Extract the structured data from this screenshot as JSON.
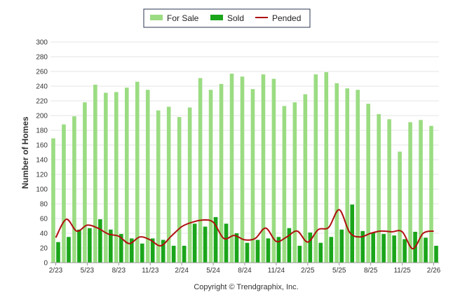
{
  "chart_data": {
    "type": "bar",
    "ylabel": "Number of Homes",
    "ylim": [
      0,
      300
    ],
    "yticks": [
      0,
      20,
      40,
      60,
      80,
      100,
      120,
      140,
      160,
      180,
      200,
      220,
      240,
      260,
      280,
      300
    ],
    "grid": true,
    "legend_position": "top-center",
    "credit": "Copyright © Trendgraphix, Inc.",
    "x": [
      "2/23",
      "3/23",
      "4/23",
      "5/23",
      "6/23",
      "7/23",
      "8/23",
      "9/23",
      "10/23",
      "11/23",
      "12/23",
      "1/24",
      "2/24",
      "3/24",
      "4/24",
      "5/24",
      "6/24",
      "7/24",
      "8/24",
      "9/24",
      "10/24",
      "11/24",
      "12/24",
      "1/25",
      "2/25",
      "3/25",
      "4/25",
      "5/25",
      "6/25",
      "7/25",
      "8/25",
      "9/25",
      "10/25",
      "11/25",
      "12/25",
      "1/26",
      "2/26"
    ],
    "x_tick_labels": [
      {
        "index": 0,
        "label": "2/23"
      },
      {
        "index": 3,
        "label": "5/23"
      },
      {
        "index": 6,
        "label": "8/23"
      },
      {
        "index": 9,
        "label": "11/23"
      },
      {
        "index": 12,
        "label": "2/24"
      },
      {
        "index": 15,
        "label": "5/24"
      },
      {
        "index": 18,
        "label": "8/24"
      },
      {
        "index": 21,
        "label": "11/24"
      },
      {
        "index": 24,
        "label": "2/25"
      },
      {
        "index": 27,
        "label": "5/25"
      },
      {
        "index": 30,
        "label": "8/25"
      },
      {
        "index": 33,
        "label": "11/25"
      },
      {
        "index": 36,
        "label": "2/26"
      }
    ],
    "series": [
      {
        "name": "For Sale",
        "kind": "bar",
        "color": "#9bdc82",
        "values": [
          169,
          188,
          199,
          218,
          242,
          231,
          232,
          238,
          246,
          235,
          207,
          212,
          198,
          211,
          251,
          235,
          243,
          257,
          253,
          236,
          256,
          250,
          213,
          218,
          229,
          256,
          259,
          244,
          237,
          235,
          216,
          202,
          195,
          151,
          191,
          194,
          186
        ]
      },
      {
        "name": "Sold",
        "kind": "bar",
        "color": "#1aa51a",
        "values": [
          28,
          35,
          45,
          47,
          59,
          45,
          39,
          33,
          26,
          33,
          31,
          23,
          23,
          53,
          49,
          62,
          53,
          40,
          27,
          31,
          33,
          35,
          47,
          23,
          41,
          27,
          35,
          45,
          79,
          43,
          41,
          39,
          37,
          32,
          42,
          34,
          23
        ]
      },
      {
        "name": "Pended",
        "kind": "line",
        "color": "#b01010",
        "values": [
          34,
          59,
          43,
          51,
          47,
          39,
          36,
          26,
          35,
          31,
          23,
          36,
          49,
          55,
          58,
          55,
          33,
          37,
          31,
          33,
          47,
          29,
          35,
          43,
          28,
          45,
          48,
          72,
          41,
          35,
          40,
          43,
          42,
          42,
          19,
          40,
          43
        ]
      }
    ]
  }
}
